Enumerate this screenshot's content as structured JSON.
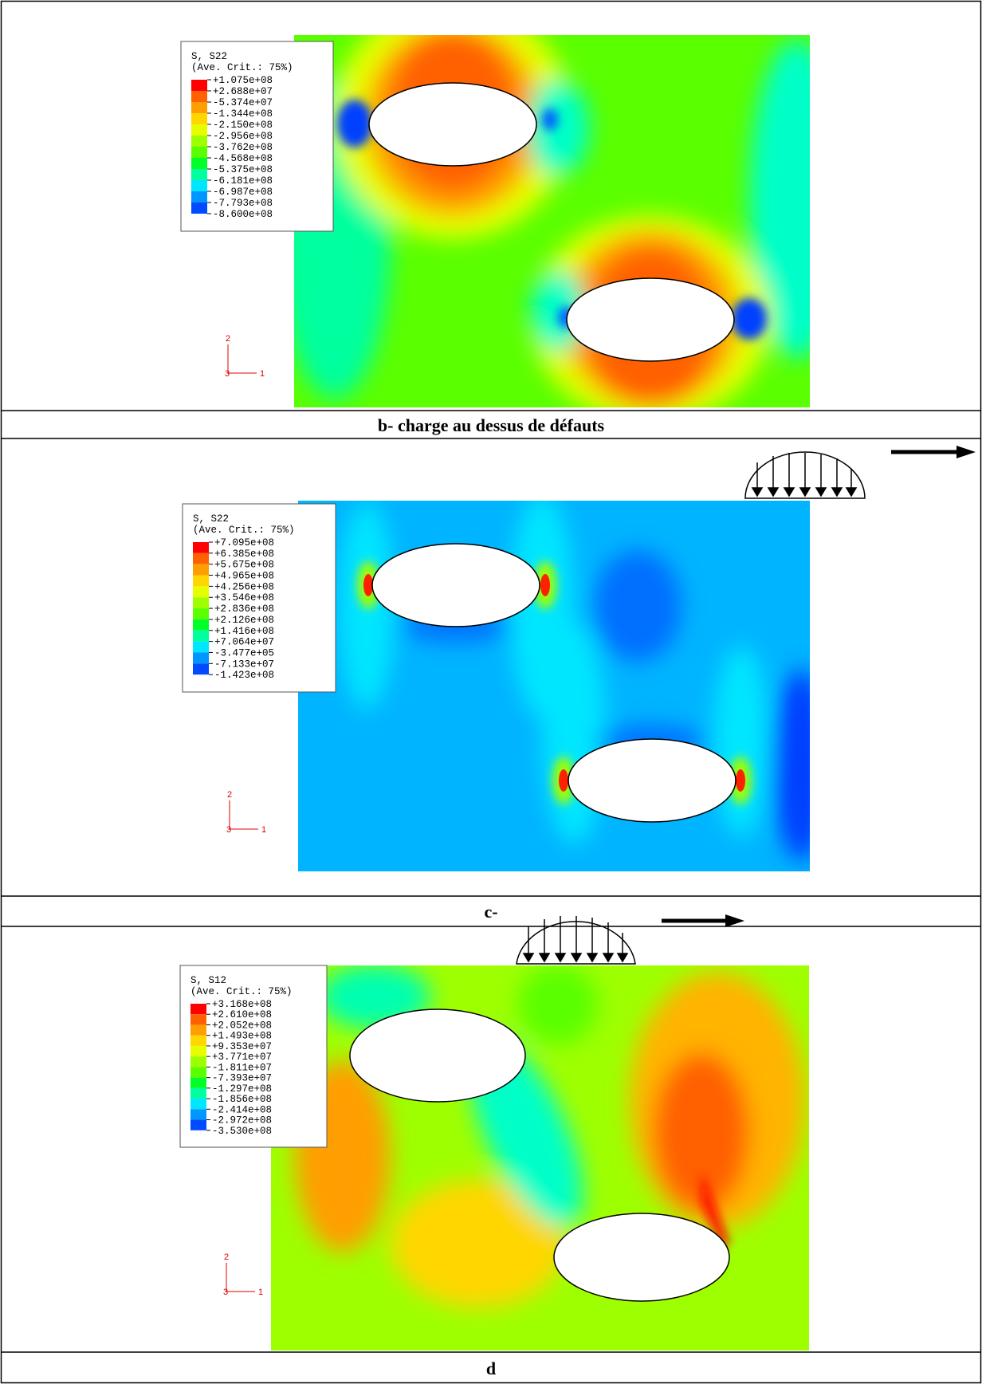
{
  "panels": [
    {
      "legend": {
        "title": "S, S22",
        "subtitle": "(Ave. Crit.: 75%)",
        "values": [
          "+1.075e+08",
          "+2.688e+07",
          "-5.374e+07",
          "-1.344e+08",
          "-2.150e+08",
          "-2.956e+08",
          "-3.762e+08",
          "-4.568e+08",
          "-5.375e+08",
          "-6.181e+08",
          "-6.987e+08",
          "-7.793e+08",
          "-8.600e+08"
        ]
      },
      "triad": [
        "2",
        "3",
        "1"
      ],
      "caption": "b- charge au dessus de défauts"
    },
    {
      "legend": {
        "title": "S, S22",
        "subtitle": "(Ave. Crit.: 75%)",
        "values": [
          "+7.095e+08",
          "+6.385e+08",
          "+5.675e+08",
          "+4.965e+08",
          "+4.256e+08",
          "+3.546e+08",
          "+2.836e+08",
          "+2.126e+08",
          "+1.416e+08",
          "+7.064e+07",
          "-3.477e+05",
          "-7.133e+07",
          "-1.423e+08"
        ]
      },
      "triad": [
        "2",
        "3",
        "1"
      ],
      "caption": "c-"
    },
    {
      "legend": {
        "title": "S, S12",
        "subtitle": "(Ave. Crit.: 75%)",
        "values": [
          "+3.168e+08",
          "+2.610e+08",
          "+2.052e+08",
          "+1.493e+08",
          "+9.353e+07",
          "+3.771e+07",
          "-1.811e+07",
          "-7.393e+07",
          "-1.297e+08",
          "-1.856e+08",
          "-2.414e+08",
          "-2.972e+08",
          "-3.530e+08"
        ]
      },
      "triad": [
        "2",
        "3",
        "1"
      ],
      "caption": "d"
    }
  ]
}
